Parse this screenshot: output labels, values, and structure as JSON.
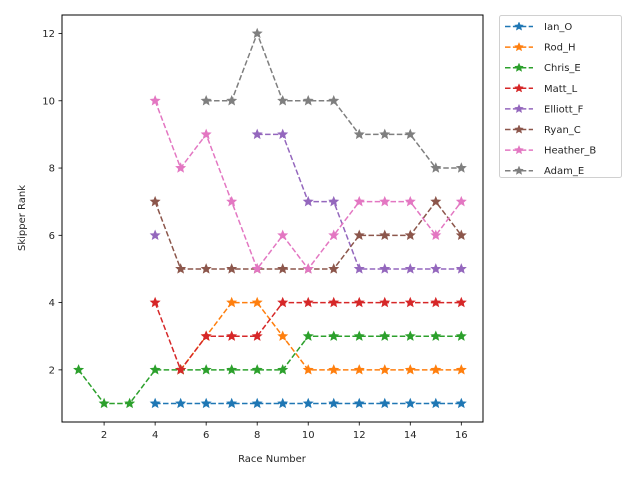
{
  "chart_data": {
    "type": "line",
    "title": "",
    "xlabel": "Race Number",
    "ylabel": "Skipper Rank",
    "xlim": [
      0.35,
      16.85
    ],
    "ylim": [
      0.45,
      12.55
    ],
    "xticks": [
      2,
      4,
      6,
      8,
      10,
      12,
      14,
      16
    ],
    "yticks": [
      2,
      4,
      6,
      8,
      10,
      12
    ],
    "grid": false,
    "legend_position": "outside upper right",
    "line_style": "dashed",
    "marker": "star",
    "series": [
      {
        "name": "Ian_O",
        "color": "#1f77b4",
        "x": [
          4,
          5,
          6,
          7,
          8,
          9,
          10,
          11,
          12,
          13,
          14,
          15,
          16
        ],
        "values": [
          1,
          1,
          1,
          1,
          1,
          1,
          1,
          1,
          1,
          1,
          1,
          1,
          1
        ]
      },
      {
        "name": "Rod_H",
        "color": "#ff7f0e",
        "x": [
          5,
          6,
          7,
          8,
          9,
          10,
          11,
          12,
          13,
          14,
          15,
          16
        ],
        "values": [
          2,
          3,
          4,
          4,
          3,
          2,
          2,
          2,
          2,
          2,
          2,
          2
        ]
      },
      {
        "name": "Chris_E",
        "color": "#2ca02c",
        "x": [
          1,
          2,
          3,
          4,
          5,
          6,
          7,
          8,
          9,
          10,
          11,
          12,
          13,
          14,
          15,
          16
        ],
        "values": [
          2,
          1,
          1,
          2,
          2,
          2,
          2,
          2,
          2,
          3,
          3,
          3,
          3,
          3,
          3,
          3
        ]
      },
      {
        "name": "Matt_L",
        "color": "#d62728",
        "x": [
          4,
          5,
          6,
          7,
          8,
          9,
          10,
          11,
          12,
          13,
          14,
          15,
          16
        ],
        "values": [
          4,
          2,
          3,
          3,
          3,
          4,
          4,
          4,
          4,
          4,
          4,
          4,
          4
        ]
      },
      {
        "name": "Elliott_F",
        "color": "#9467bd",
        "segments": [
          {
            "x": [
              4
            ],
            "values": [
              6
            ]
          },
          {
            "x": [
              8,
              9,
              10,
              11,
              12,
              13,
              14,
              15,
              16
            ],
            "values": [
              9,
              9,
              7,
              7,
              5,
              5,
              5,
              5,
              5
            ]
          }
        ],
        "x": [
          4,
          8,
          9,
          10,
          11,
          12,
          13,
          14,
          15,
          16
        ],
        "values": [
          6,
          9,
          9,
          7,
          7,
          5,
          5,
          5,
          5,
          5
        ]
      },
      {
        "name": "Ryan_C",
        "color": "#8c564b",
        "x": [
          4,
          5,
          6,
          7,
          8,
          9,
          10,
          11,
          12,
          13,
          14,
          15,
          16
        ],
        "values": [
          7,
          5,
          5,
          5,
          5,
          5,
          5,
          5,
          6,
          6,
          6,
          7,
          6
        ]
      },
      {
        "name": "Heather_B",
        "color": "#e377c2",
        "x": [
          4,
          5,
          6,
          7,
          8,
          9,
          10,
          11,
          12,
          13,
          14,
          15,
          16
        ],
        "values": [
          10,
          8,
          9,
          7,
          5,
          6,
          5,
          6,
          7,
          7,
          7,
          6,
          7
        ]
      },
      {
        "name": "Adam_E",
        "color": "#7f7f7f",
        "x": [
          6,
          7,
          8,
          9,
          10,
          11,
          12,
          13,
          14,
          15,
          16
        ],
        "values": [
          10,
          10,
          12,
          10,
          10,
          10,
          9,
          9,
          9,
          8,
          8
        ]
      }
    ]
  }
}
